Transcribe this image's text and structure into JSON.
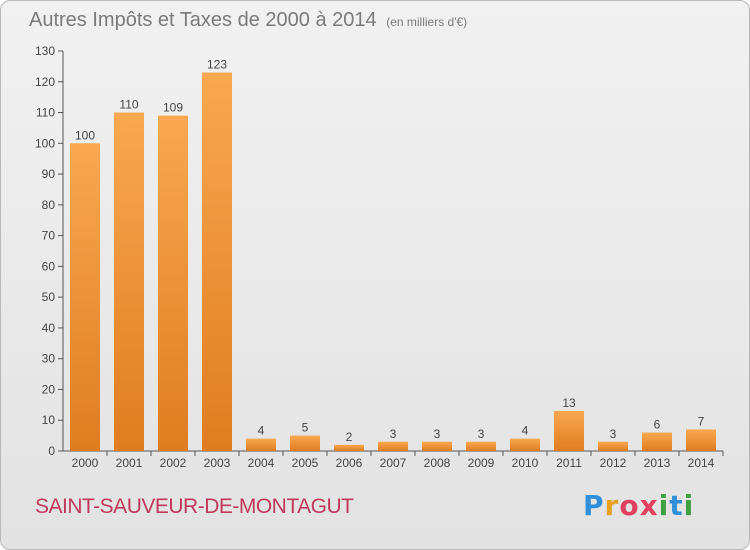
{
  "title": "Autres Impôts et Taxes de 2000 à 2014",
  "unit_note": "(en milliers d'€)",
  "commune": "SAINT-SAUVEUR-DE-MONTAGUT",
  "logo": {
    "letters": [
      "P",
      "r",
      "o",
      "x",
      "i",
      "t",
      "i"
    ],
    "colors": [
      "#2f8fd8",
      "#e8a020",
      "#e04060",
      "#e04060",
      "#40a040",
      "#2f8fd8",
      "#40a040"
    ]
  },
  "colors": {
    "bar_top": "#f8a850",
    "bar_bottom": "#e07c20",
    "commune": "#c0395a"
  },
  "chart_data": {
    "type": "bar",
    "categories": [
      "2000",
      "2001",
      "2002",
      "2003",
      "2004",
      "2005",
      "2006",
      "2007",
      "2008",
      "2009",
      "2010",
      "2011",
      "2012",
      "2013",
      "2014"
    ],
    "values": [
      100,
      110,
      109,
      123,
      4,
      5,
      2,
      3,
      3,
      3,
      4,
      13,
      3,
      6,
      7
    ],
    "title": "Autres Impôts et Taxes de 2000 à 2014",
    "subtitle": "(en milliers d'€)",
    "xlabel": "",
    "ylabel": "",
    "ylim": [
      0,
      130
    ],
    "yticks": [
      0,
      10,
      20,
      30,
      40,
      50,
      60,
      70,
      80,
      90,
      100,
      110,
      120,
      130
    ],
    "grid": false,
    "legend": "none"
  }
}
